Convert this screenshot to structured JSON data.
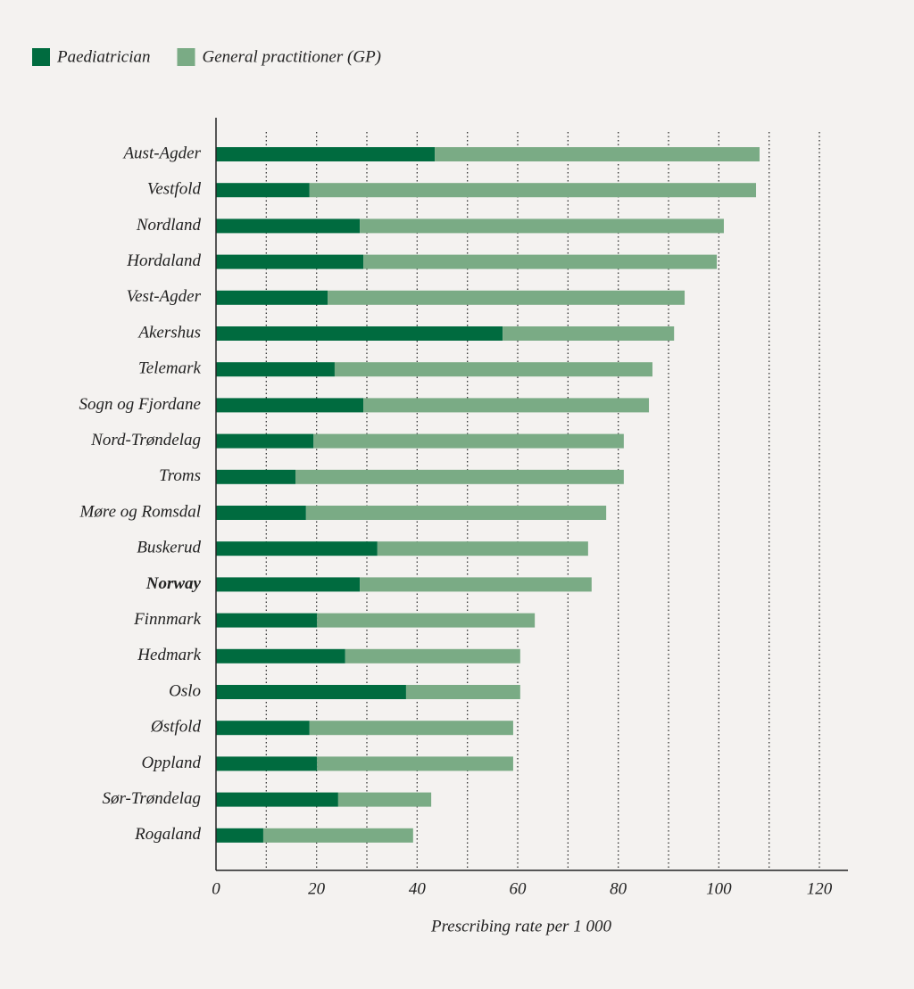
{
  "chart_data": {
    "type": "stacked-barh",
    "x_label": "Prescribing rate per 1 000",
    "categories": [
      "Aust-Agder",
      "Vestfold",
      "Nordland",
      "Hordaland",
      "Vest-Agder",
      "Akershus",
      "Telemark",
      "Sogn og Fjordane",
      "Nord-Trøndelag",
      "Troms",
      "Møre og Romsdal",
      "Buskerud",
      "Norway",
      "Finnmark",
      "Hedmark",
      "Oslo",
      "Østfold",
      "Oppland",
      "Sør-Trøndelag",
      "Rogaland"
    ],
    "bold_category_index": 12,
    "series": [
      {
        "name": "Paediatrician",
        "color": "#006b3f",
        "values": [
          43.5,
          18.6,
          28.6,
          29.3,
          22.2,
          57.0,
          23.6,
          29.3,
          19.4,
          15.8,
          17.9,
          32.1,
          28.6,
          20.1,
          25.7,
          37.8,
          18.6,
          20.1,
          24.3,
          9.4
        ]
      },
      {
        "name": "General practitioner (GP)",
        "color": "#7aab85",
        "values": [
          64.6,
          88.8,
          72.4,
          70.3,
          71.0,
          34.1,
          63.2,
          56.8,
          61.7,
          65.3,
          59.7,
          41.9,
          46.1,
          43.3,
          34.8,
          22.7,
          40.5,
          39.0,
          18.5,
          29.8
        ]
      }
    ],
    "xlim": [
      0,
      120
    ],
    "xticks": [
      0,
      20,
      40,
      60,
      80,
      100,
      120
    ],
    "xgrid": [
      10,
      20,
      30,
      40,
      50,
      60,
      70,
      80,
      90,
      100,
      110,
      120
    ],
    "grid": true
  }
}
